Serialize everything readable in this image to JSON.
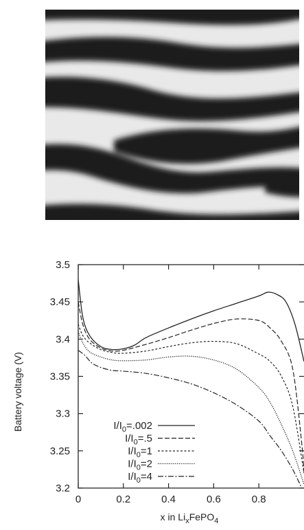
{
  "figure": {
    "image_description_icon": "phase-separation-stripe-pattern"
  },
  "chart_data": {
    "type": "line",
    "title": "",
    "ylabel": "Battery voltage (V)",
    "xlabel_parts": [
      "x in Li",
      "x",
      "FePO",
      "4"
    ],
    "xlim": [
      0,
      1.0
    ],
    "ylim": [
      3.2,
      3.5
    ],
    "x_ticks": [
      0,
      0.2,
      0.4,
      0.6,
      0.8
    ],
    "x_tick_labels": [
      "0",
      "0.2",
      "0.4",
      "0.6",
      "0.8"
    ],
    "y_ticks": [
      3.2,
      3.25,
      3.3,
      3.35,
      3.4,
      3.45,
      3.5
    ],
    "y_tick_labels": [
      "3.2",
      "3.25",
      "3.3",
      "3.35",
      "3.4",
      "3.45",
      "3.5"
    ],
    "grid": false,
    "legend_position": "bottom-left",
    "series": [
      {
        "name": ".002",
        "legend_prefix": "I/I",
        "legend_sub": "0",
        "style": "solid",
        "points": [
          [
            0,
            3.48
          ],
          [
            0.02,
            3.43
          ],
          [
            0.05,
            3.405
          ],
          [
            0.1,
            3.39
          ],
          [
            0.15,
            3.386
          ],
          [
            0.2,
            3.387
          ],
          [
            0.25,
            3.392
          ],
          [
            0.3,
            3.402
          ],
          [
            0.4,
            3.415
          ],
          [
            0.5,
            3.427
          ],
          [
            0.6,
            3.438
          ],
          [
            0.7,
            3.448
          ],
          [
            0.8,
            3.458
          ],
          [
            0.84,
            3.463
          ],
          [
            0.88,
            3.46
          ],
          [
            0.92,
            3.45
          ],
          [
            0.96,
            3.42
          ],
          [
            1.0,
            3.37
          ]
        ]
      },
      {
        "name": ".5",
        "legend_prefix": "I/I",
        "legend_sub": "0",
        "style": "dashed",
        "points": [
          [
            0,
            3.45
          ],
          [
            0.02,
            3.42
          ],
          [
            0.05,
            3.4
          ],
          [
            0.1,
            3.388
          ],
          [
            0.15,
            3.384
          ],
          [
            0.2,
            3.385
          ],
          [
            0.3,
            3.393
          ],
          [
            0.4,
            3.402
          ],
          [
            0.5,
            3.412
          ],
          [
            0.6,
            3.421
          ],
          [
            0.7,
            3.427
          ],
          [
            0.8,
            3.425
          ],
          [
            0.85,
            3.415
          ],
          [
            0.9,
            3.397
          ],
          [
            0.95,
            3.36
          ],
          [
            0.99,
            3.26
          ],
          [
            1.0,
            3.22
          ]
        ]
      },
      {
        "name": "1",
        "legend_prefix": "I/I",
        "legend_sub": "0",
        "style": "dotted",
        "points": [
          [
            0,
            3.42
          ],
          [
            0.02,
            3.405
          ],
          [
            0.05,
            3.395
          ],
          [
            0.1,
            3.386
          ],
          [
            0.15,
            3.382
          ],
          [
            0.2,
            3.381
          ],
          [
            0.3,
            3.384
          ],
          [
            0.4,
            3.39
          ],
          [
            0.5,
            3.395
          ],
          [
            0.6,
            3.397
          ],
          [
            0.7,
            3.394
          ],
          [
            0.8,
            3.38
          ],
          [
            0.85,
            3.37
          ],
          [
            0.9,
            3.35
          ],
          [
            0.95,
            3.31
          ],
          [
            1.0,
            3.22
          ]
        ]
      },
      {
        "name": "2",
        "legend_prefix": "I/I",
        "legend_sub": "0",
        "style": "fine-dotted",
        "points": [
          [
            0,
            3.41
          ],
          [
            0.02,
            3.395
          ],
          [
            0.05,
            3.383
          ],
          [
            0.1,
            3.376
          ],
          [
            0.15,
            3.372
          ],
          [
            0.2,
            3.371
          ],
          [
            0.3,
            3.372
          ],
          [
            0.4,
            3.376
          ],
          [
            0.5,
            3.377
          ],
          [
            0.6,
            3.372
          ],
          [
            0.7,
            3.36
          ],
          [
            0.8,
            3.335
          ],
          [
            0.85,
            3.315
          ],
          [
            0.9,
            3.285
          ],
          [
            0.95,
            3.25
          ],
          [
            1.0,
            3.205
          ]
        ]
      },
      {
        "name": "4",
        "legend_prefix": "I/I",
        "legend_sub": "0",
        "style": "dash-dot",
        "points": [
          [
            0,
            3.385
          ],
          [
            0.03,
            3.378
          ],
          [
            0.06,
            3.368
          ],
          [
            0.1,
            3.362
          ],
          [
            0.15,
            3.358
          ],
          [
            0.2,
            3.357
          ],
          [
            0.3,
            3.354
          ],
          [
            0.4,
            3.348
          ],
          [
            0.5,
            3.34
          ],
          [
            0.6,
            3.328
          ],
          [
            0.7,
            3.312
          ],
          [
            0.8,
            3.29
          ],
          [
            0.85,
            3.27
          ],
          [
            0.9,
            3.25
          ],
          [
            0.95,
            3.225
          ],
          [
            0.99,
            3.2
          ]
        ]
      }
    ]
  }
}
